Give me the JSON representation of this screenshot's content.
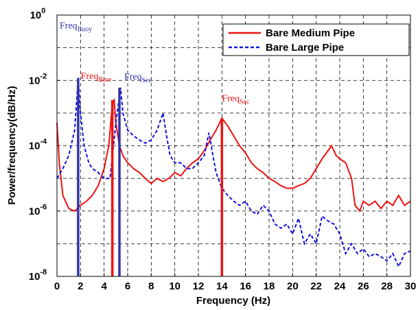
{
  "chart_data": {
    "type": "line",
    "xlabel": "Frequency (Hz)",
    "ylabel": "Power/frequency(dB/Hz)",
    "xlim": [
      0,
      30
    ],
    "xticks": [
      0,
      2,
      4,
      6,
      8,
      10,
      12,
      14,
      16,
      18,
      20,
      22,
      24,
      26,
      28,
      30
    ],
    "ylim": [
      1e-08,
      1
    ],
    "yscale": "log",
    "yticks": [
      {
        "value": 1,
        "label": "10",
        "exponent": "0"
      },
      {
        "value": 0.01,
        "label": "10",
        "exponent": "-2"
      },
      {
        "value": 0.0001,
        "label": "10",
        "exponent": "-4"
      },
      {
        "value": 1e-06,
        "label": "10",
        "exponent": "-6"
      },
      {
        "value": 1e-08,
        "label": "10",
        "exponent": "-8"
      }
    ],
    "ygrid_minor": [
      0.1,
      0.001,
      1e-05,
      1e-07
    ],
    "grid": true,
    "legend": "upper right",
    "series": [
      {
        "name": "Bare Medium Pipe",
        "color": "#ee1111",
        "dash": false,
        "x": [
          0,
          0.2,
          0.5,
          1,
          1.5,
          2,
          2.5,
          3,
          3.5,
          4,
          4.4,
          4.7,
          4.85,
          5,
          5.3,
          5.6,
          6,
          6.5,
          7,
          7.5,
          8,
          8.5,
          9,
          9.5,
          10,
          10.5,
          11,
          11.5,
          12,
          12.5,
          13,
          13.5,
          14,
          14.5,
          15,
          15.5,
          16,
          16.5,
          17,
          17.5,
          18,
          18.5,
          19,
          19.5,
          20,
          20.5,
          21,
          21.5,
          22,
          22.5,
          23,
          23.3,
          23.7,
          24,
          24.5,
          25,
          25.3,
          25.7,
          26,
          26.5,
          27,
          27.5,
          28,
          28.5,
          29,
          29.5,
          30
        ],
        "values": [
          0.0005,
          3e-05,
          3e-06,
          1.2e-06,
          1e-06,
          1.5e-06,
          2e-06,
          3e-06,
          6e-06,
          2e-05,
          0.0001,
          0.002,
          0.0025,
          0.0005,
          0.0001,
          5e-05,
          3e-05,
          2e-05,
          1.5e-05,
          1e-05,
          7e-06,
          1e-05,
          8e-06,
          1e-05,
          1.5e-05,
          1.2e-05,
          2e-05,
          3e-05,
          4e-05,
          7e-05,
          0.00015,
          0.0003,
          0.0007,
          0.0004,
          0.0002,
          0.0001,
          6e-05,
          3e-05,
          2e-05,
          1.5e-05,
          1e-05,
          8e-06,
          6e-06,
          5e-06,
          5e-06,
          6e-06,
          7e-06,
          1e-05,
          2e-05,
          4e-05,
          7e-05,
          0.0001,
          5e-05,
          4e-05,
          3e-05,
          1e-05,
          1.5e-06,
          1e-06,
          2e-06,
          1.5e-06,
          2e-06,
          1.2e-06,
          2e-06,
          1.5e-06,
          3e-06,
          1.5e-06,
          2e-06
        ]
      },
      {
        "name": "Bare Large Pipe",
        "color": "#1111dd",
        "dash": true,
        "x": [
          0,
          0.5,
          1,
          1.5,
          1.8,
          2,
          2.3,
          2.7,
          3,
          3.5,
          4,
          4.5,
          5,
          5.4,
          5.6,
          6,
          6.5,
          7,
          7.5,
          8,
          8.5,
          9,
          9.3,
          9.6,
          10,
          10.5,
          11,
          11.5,
          12,
          12.5,
          12.9,
          13.2,
          13.5,
          14,
          14.5,
          15,
          15.5,
          16,
          16.5,
          17,
          17.5,
          18,
          18.5,
          19,
          19.5,
          20,
          20.5,
          21,
          21.5,
          22,
          22.5,
          23,
          23.5,
          24,
          24.5,
          25,
          25.5,
          26,
          26.5,
          27,
          27.5,
          28,
          28.5,
          29,
          29.5,
          30
        ],
        "values": [
          1e-05,
          2e-05,
          5e-05,
          0.0003,
          0.012,
          0.001,
          0.0001,
          3e-05,
          2e-05,
          1.5e-05,
          1e-05,
          1e-05,
          0.0005,
          0.006,
          0.001,
          0.0003,
          0.0002,
          0.00015,
          0.00012,
          0.00015,
          0.0003,
          0.001,
          0.0002,
          5e-05,
          3e-05,
          3e-05,
          2e-05,
          2e-05,
          3e-05,
          5e-05,
          0.00025,
          6e-05,
          1.5e-05,
          5e-06,
          3e-06,
          2e-06,
          1.5e-06,
          2e-06,
          1e-06,
          8e-07,
          1.5e-06,
          1e-06,
          4e-07,
          3e-07,
          4e-07,
          2e-07,
          6e-07,
          1e-07,
          2e-07,
          1e-07,
          7e-07,
          5e-07,
          4e-07,
          2e-07,
          5e-08,
          1e-07,
          5e-08,
          7e-08,
          4e-08,
          5e-08,
          4e-08,
          3e-08,
          5e-08,
          2e-08,
          5e-08,
          6e-08
        ]
      }
    ],
    "markers": [
      {
        "x": 1.8,
        "top": 0.012,
        "color": "#3333aa",
        "label": "Freq",
        "sub": "Buoy"
      },
      {
        "x": 4.7,
        "top": 0.0025,
        "color": "#ee1111",
        "label": "Freq",
        "sub": "Bare"
      },
      {
        "x": 5.3,
        "top": 0.006,
        "color": "#3333aa",
        "label": "Freq",
        "sub": "Sec"
      },
      {
        "x": 14,
        "top": 0.0007,
        "color": "#ee1111",
        "label": "Freq",
        "sub": "Sec"
      }
    ]
  }
}
